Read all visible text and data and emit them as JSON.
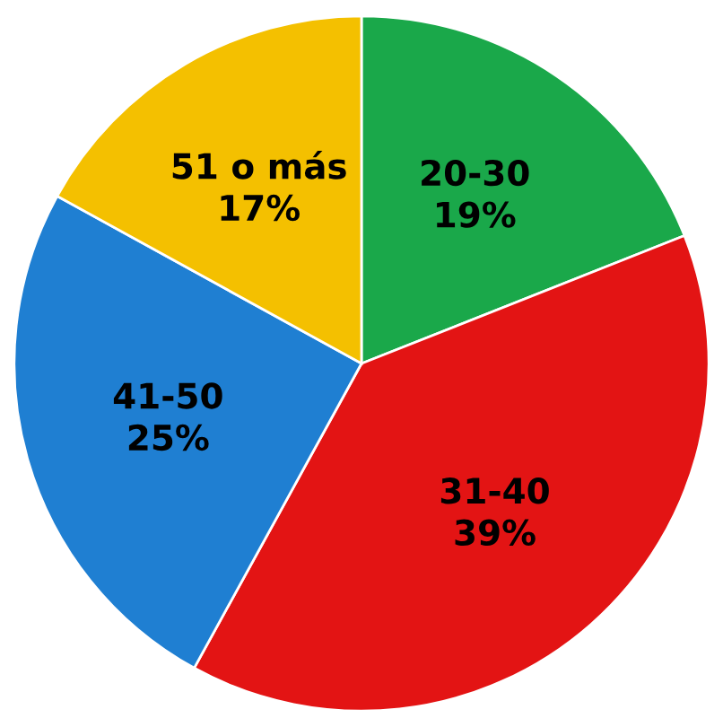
{
  "chart_data": {
    "type": "pie",
    "categories": [
      "20-30",
      "31-40",
      "41-50",
      "51 o más"
    ],
    "values": [
      19,
      39,
      25,
      17
    ],
    "colors": [
      "#1aa84a",
      "#e31414",
      "#1f7fd2",
      "#f4c000"
    ],
    "value_labels": [
      "19%",
      "39%",
      "25%",
      "17%"
    ]
  }
}
